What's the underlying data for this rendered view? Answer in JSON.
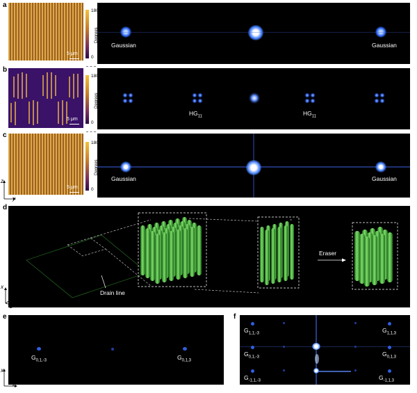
{
  "panels": {
    "a": {
      "letter": "a",
      "scale": "5 μm",
      "cbar_max": "180",
      "cbar_min": "0",
      "cbar_label": "Degrees",
      "left_label": "Gaussian",
      "right_label": "Gaussian"
    },
    "b": {
      "letter": "b",
      "scale": "5 μm",
      "cbar_max": "180",
      "cbar_min": "0",
      "cbar_label": "Degrees",
      "left_label": "HG",
      "left_sub": "11",
      "right_label": "HG",
      "right_sub": "11"
    },
    "c": {
      "letter": "c",
      "scale": "5 μm",
      "cbar_max": "180",
      "cbar_min": "0",
      "cbar_label": "Degrees",
      "left_label": "Gaussian",
      "right_label": "Gaussian"
    },
    "d": {
      "letter": "d",
      "eraser": "Eraser",
      "drain": "Drain line"
    },
    "e": {
      "letter": "e",
      "left_label": "G",
      "left_sub": "0,1,-3",
      "right_label": "G",
      "right_sub": "0,1,3"
    },
    "f": {
      "letter": "f",
      "labels": [
        {
          "main": "G",
          "sub": "1,1,-3"
        },
        {
          "main": "G",
          "sub": "1,1,3"
        },
        {
          "main": "G",
          "sub": "0,1,-3"
        },
        {
          "main": "G",
          "sub": "0,1,3"
        },
        {
          "main": "G",
          "sub": "-1,1,-3"
        },
        {
          "main": "G",
          "sub": "-1,1,3"
        }
      ]
    }
  },
  "axes": {
    "top": {
      "vertical": "z",
      "horizontal": "y"
    },
    "d": {
      "x": "x",
      "y": "y",
      "z": "z"
    },
    "bottom": {
      "vertical": "x",
      "horizontal": "z"
    }
  },
  "colors": {
    "spot": "#2f6bff",
    "spot_core": "#e8f2ff",
    "cylinder": "#3fae3a",
    "micro": "#c8912f"
  }
}
